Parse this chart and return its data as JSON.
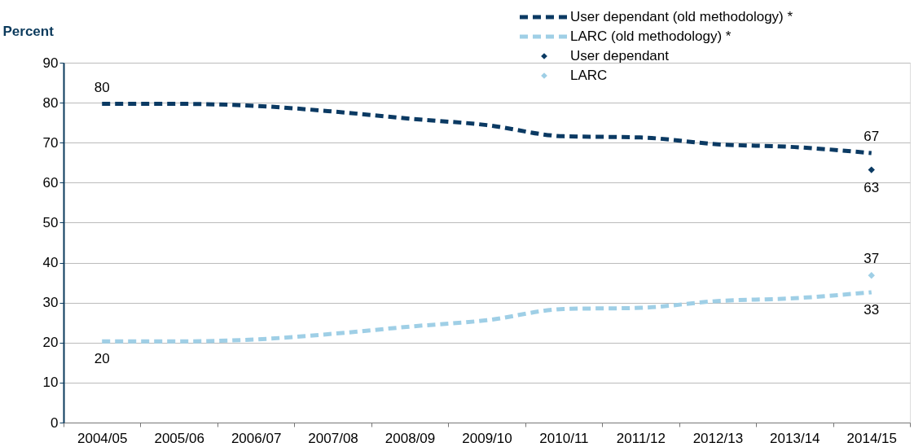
{
  "chart_data": {
    "type": "line",
    "ylabel": "Percent",
    "categories": [
      "2004/05",
      "2005/06",
      "2006/07",
      "2007/08",
      "2008/09",
      "2009/10",
      "2010/11",
      "2011/12",
      "2012/13",
      "2013/14",
      "2014/15"
    ],
    "ylim": [
      0,
      90
    ],
    "yticks": [
      0,
      10,
      20,
      30,
      40,
      50,
      60,
      70,
      80,
      90
    ],
    "grid": "y",
    "legend": "top right",
    "series": [
      {
        "name": "User dependant (old methodology) *",
        "color": "#0b3a63",
        "line_style": "dashed",
        "marker": "none",
        "values": [
          79.7,
          79.7,
          79.2,
          77.8,
          76.0,
          74.4,
          71.6,
          71.3,
          69.6,
          68.9,
          67.4
        ],
        "value_labels": [
          "80",
          null,
          null,
          null,
          null,
          null,
          null,
          null,
          null,
          null,
          "67"
        ]
      },
      {
        "name": "LARC (old methodology) *",
        "color": "#9fcfe6",
        "line_style": "dashed",
        "marker": "none",
        "values": [
          20.3,
          20.3,
          20.8,
          22.2,
          24.0,
          25.6,
          28.4,
          28.7,
          30.4,
          31.1,
          32.6
        ],
        "value_labels": [
          "20",
          null,
          null,
          null,
          null,
          null,
          null,
          null,
          null,
          null,
          "33"
        ]
      },
      {
        "name": "User dependant",
        "color": "#0b3a63",
        "type": "scatter",
        "marker": "diamond",
        "values": [
          null,
          null,
          null,
          null,
          null,
          null,
          null,
          null,
          null,
          null,
          63.2
        ],
        "value_labels": [
          null,
          null,
          null,
          null,
          null,
          null,
          null,
          null,
          null,
          null,
          "63"
        ]
      },
      {
        "name": "LARC",
        "color": "#9fcfe6",
        "type": "scatter",
        "marker": "diamond",
        "values": [
          null,
          null,
          null,
          null,
          null,
          null,
          null,
          null,
          null,
          null,
          36.8
        ],
        "value_labels": [
          null,
          null,
          null,
          null,
          null,
          null,
          null,
          null,
          null,
          null,
          "37"
        ]
      }
    ]
  }
}
